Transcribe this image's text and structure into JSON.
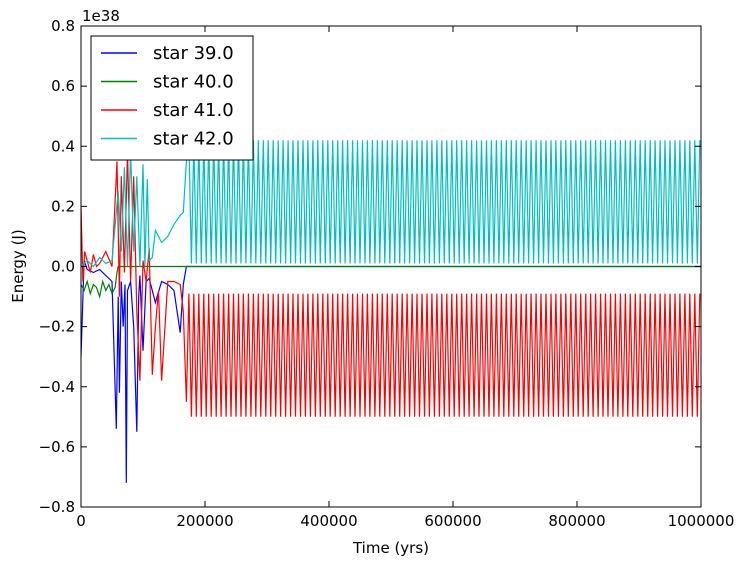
{
  "chart_data": {
    "type": "line",
    "xlabel": "Time (yrs)",
    "ylabel": "Energy (J)",
    "y_multiplier_label": "1e38",
    "xlim": [
      0,
      1000000
    ],
    "ylim": [
      -0.8,
      0.8
    ],
    "x_ticks": [
      0,
      200000,
      400000,
      600000,
      800000,
      1000000
    ],
    "x_tick_labels": [
      "0",
      "200000",
      "400000",
      "600000",
      "800000",
      "1000000"
    ],
    "y_ticks": [
      -0.8,
      -0.6,
      -0.4,
      -0.2,
      0.0,
      0.2,
      0.4,
      0.6,
      0.8
    ],
    "y_tick_labels": [
      "−0.8",
      "−0.6",
      "−0.4",
      "−0.2",
      "0.0",
      "0.2",
      "0.4",
      "0.6",
      "0.8"
    ],
    "grid": false,
    "legend_position": "top-left",
    "series": [
      {
        "name": "star 39.0",
        "color": "#0000ff",
        "x": [
          0,
          5000,
          10000,
          20000,
          30000,
          40000,
          50000,
          57000,
          60000,
          62000,
          65000,
          68000,
          71000,
          73000,
          75000,
          80000,
          85000,
          90000,
          93000,
          95000,
          100000,
          105000,
          110000,
          120000,
          130000,
          140000,
          150000,
          160000,
          165000,
          170000,
          200000,
          400000,
          600000,
          800000,
          1000000
        ],
        "values": [
          -0.3,
          0.02,
          -0.01,
          -0.02,
          -0.01,
          -0.03,
          -0.05,
          -0.54,
          -0.1,
          -0.42,
          -0.05,
          -0.2,
          -0.06,
          -0.72,
          -0.08,
          -0.05,
          -0.2,
          -0.55,
          -0.1,
          -0.03,
          -0.28,
          -0.05,
          -0.04,
          -0.12,
          -0.05,
          -0.06,
          -0.08,
          -0.22,
          -0.06,
          0.0,
          0.0,
          0.0,
          0.0,
          0.0,
          0.0
        ]
      },
      {
        "name": "star 40.0",
        "color": "#008000",
        "x": [
          0,
          5000,
          10000,
          15000,
          20000,
          25000,
          30000,
          35000,
          40000,
          45000,
          50000,
          55000,
          58000,
          60000,
          65000,
          70000,
          80000,
          100000,
          150000,
          200000,
          400000,
          600000,
          800000,
          1000000
        ],
        "values": [
          -0.06,
          -0.08,
          -0.05,
          -0.09,
          -0.06,
          -0.07,
          -0.1,
          -0.05,
          -0.08,
          -0.06,
          -0.09,
          -0.07,
          -0.02,
          0.0,
          0.0,
          0.0,
          0.0,
          0.0,
          0.0,
          0.0,
          0.0,
          0.0,
          0.0,
          0.0
        ]
      },
      {
        "name": "star 41.0",
        "color": "#ff0000",
        "x": [
          0,
          3000,
          6000,
          10000,
          15000,
          20000,
          25000,
          30000,
          40000,
          50000,
          58000,
          62000,
          65000,
          70000,
          75000,
          80000,
          85000,
          90000,
          95000,
          100000,
          105000,
          110000,
          115000,
          120000,
          125000,
          130000,
          140000,
          150000,
          160000,
          165000,
          170000
        ],
        "values": [
          0.2,
          -0.05,
          0.05,
          0.02,
          -0.02,
          0.04,
          0.0,
          0.01,
          0.05,
          0.0,
          0.35,
          -0.1,
          0.3,
          -0.02,
          0.38,
          -0.05,
          0.3,
          -0.15,
          -0.38,
          0.02,
          -0.05,
          0.06,
          -0.36,
          -0.2,
          -0.08,
          -0.38,
          -0.05,
          -0.05,
          -0.06,
          -0.15,
          -0.45
        ],
        "oscillation": {
          "x_start": 170000,
          "x_end": 1000000,
          "min": -0.5,
          "max": -0.09,
          "period": 8000
        }
      },
      {
        "name": "star 42.0",
        "color": "#00bfbf",
        "x": [
          0,
          10000,
          20000,
          30000,
          40000,
          50000,
          60000,
          65000,
          70000,
          75000,
          80000,
          85000,
          90000,
          95000,
          100000,
          103000,
          107000,
          110000,
          115000,
          120000,
          130000,
          140000,
          150000,
          160000,
          165000,
          170000
        ],
        "values": [
          0.0,
          0.02,
          0.0,
          0.03,
          0.01,
          0.02,
          0.25,
          0.05,
          0.33,
          0.0,
          0.38,
          0.05,
          0.3,
          0.0,
          0.34,
          0.0,
          0.29,
          0.02,
          0.03,
          0.12,
          0.08,
          0.1,
          0.14,
          0.17,
          0.18,
          0.35
        ],
        "oscillation": {
          "x_start": 170000,
          "x_end": 1000000,
          "min": 0.01,
          "max": 0.42,
          "period": 8000
        }
      }
    ]
  }
}
